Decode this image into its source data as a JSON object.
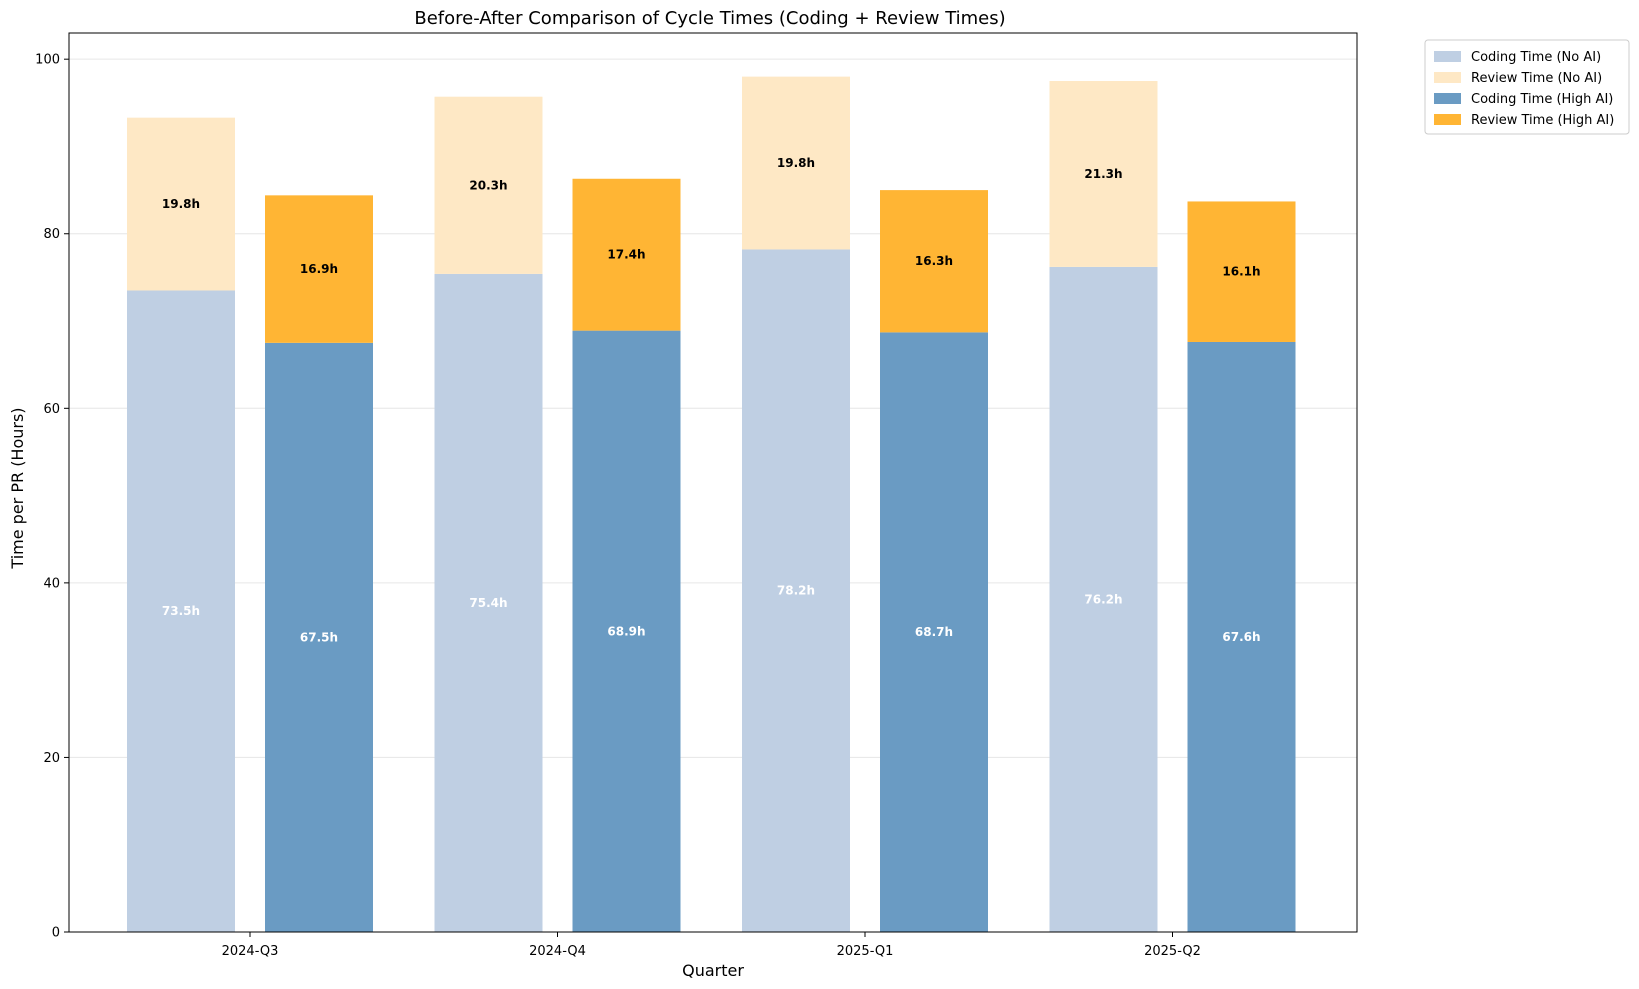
{
  "chart_data": {
    "type": "bar",
    "stacked": true,
    "grouped": true,
    "title": "Before-After Comparison of Cycle Times (Coding + Review Times)",
    "xlabel": "Quarter",
    "ylabel": "Time per PR (Hours)",
    "categories": [
      "2024-Q3",
      "2024-Q4",
      "2025-Q1",
      "2025-Q2"
    ],
    "ylim": [
      0,
      103
    ],
    "yticks": [
      0,
      20,
      40,
      60,
      80,
      100
    ],
    "grid": "y",
    "legend_position": "outside-top-right",
    "groups": [
      {
        "name": "No AI",
        "series": [
          {
            "name": "Coding Time (No AI)",
            "values": [
              73.5,
              75.4,
              78.2,
              76.2
            ],
            "color": "#bfcfe3",
            "labels": [
              "73.5h",
              "75.4h",
              "78.2h",
              "76.2h"
            ],
            "label_color": "#ffffff"
          },
          {
            "name": "Review Time (No AI)",
            "values": [
              19.8,
              20.3,
              19.8,
              21.3
            ],
            "color": "#fee8c5",
            "labels": [
              "19.8h",
              "20.3h",
              "19.8h",
              "21.3h"
            ],
            "label_color": "#000000"
          }
        ]
      },
      {
        "name": "High AI",
        "series": [
          {
            "name": "Coding Time (High AI)",
            "values": [
              67.5,
              68.9,
              68.7,
              67.6
            ],
            "color": "#6a9bc3",
            "labels": [
              "67.5h",
              "68.9h",
              "68.7h",
              "67.6h"
            ],
            "label_color": "#ffffff"
          },
          {
            "name": "Review Time (High AI)",
            "values": [
              16.9,
              17.4,
              16.3,
              16.1
            ],
            "color": "#ffb534",
            "labels": [
              "16.9h",
              "17.4h",
              "16.3h",
              "16.1h"
            ],
            "label_color": "#000000"
          }
        ]
      }
    ]
  }
}
